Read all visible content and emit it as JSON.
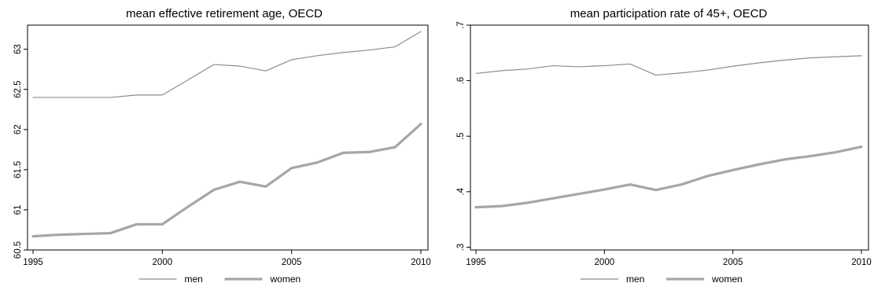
{
  "chart_data": [
    {
      "type": "line",
      "title": "mean effective retirement age, OECD",
      "xlabel": "",
      "ylabel": "",
      "xlim": [
        1995,
        2010
      ],
      "ylim": [
        60.5,
        63.3
      ],
      "xticks": [
        1995,
        2000,
        2005,
        2010
      ],
      "xtick_labels": [
        "1995",
        "2000",
        "2005",
        "2010"
      ],
      "yticks": [
        60.5,
        61,
        61.5,
        62,
        62.5,
        63
      ],
      "ytick_labels": [
        "60.5",
        "61",
        "61.5",
        "62",
        "62.5",
        "63"
      ],
      "grid": false,
      "legend_position": "bottom",
      "x": [
        1995,
        1996,
        1997,
        1998,
        1999,
        2000,
        2001,
        2002,
        2003,
        2004,
        2005,
        2006,
        2007,
        2008,
        2009,
        2010
      ],
      "series": [
        {
          "name": "men",
          "color": "#8c8c8c",
          "width": 1.2,
          "values": [
            62.4,
            62.4,
            62.4,
            62.4,
            62.43,
            62.43,
            62.62,
            62.81,
            62.79,
            62.73,
            62.87,
            62.92,
            62.96,
            62.99,
            63.03,
            63.22
          ]
        },
        {
          "name": "women",
          "color": "#a6a6a6",
          "width": 3.2,
          "values": [
            60.67,
            60.69,
            60.7,
            60.71,
            60.82,
            60.82,
            61.04,
            61.25,
            61.35,
            61.29,
            61.52,
            61.59,
            61.71,
            61.72,
            61.78,
            62.07
          ]
        }
      ]
    },
    {
      "type": "line",
      "title": "mean participation rate of 45+, OECD",
      "xlabel": "",
      "ylabel": "",
      "xlim": [
        1995,
        2010
      ],
      "ylim": [
        0.295,
        0.7
      ],
      "xticks": [
        1995,
        2000,
        2005,
        2010
      ],
      "xtick_labels": [
        "1995",
        "2000",
        "2005",
        "2010"
      ],
      "yticks": [
        0.3,
        0.4,
        0.5,
        0.6,
        0.7
      ],
      "ytick_labels": [
        ".3",
        ".4",
        ".5",
        ".6",
        ".7"
      ],
      "grid": false,
      "legend_position": "bottom",
      "x": [
        1995,
        1996,
        1997,
        1998,
        1999,
        2000,
        2001,
        2002,
        2003,
        2004,
        2005,
        2006,
        2007,
        2008,
        2009,
        2010
      ],
      "series": [
        {
          "name": "men",
          "color": "#8c8c8c",
          "width": 1.2,
          "values": [
            0.613,
            0.618,
            0.621,
            0.627,
            0.625,
            0.627,
            0.63,
            0.61,
            0.614,
            0.619,
            0.626,
            0.632,
            0.637,
            0.641,
            0.643,
            0.645
          ]
        },
        {
          "name": "women",
          "color": "#a6a6a6",
          "width": 3.2,
          "values": [
            0.372,
            0.374,
            0.38,
            0.388,
            0.396,
            0.404,
            0.413,
            0.403,
            0.413,
            0.428,
            0.439,
            0.449,
            0.458,
            0.464,
            0.471,
            0.481
          ]
        }
      ]
    }
  ]
}
